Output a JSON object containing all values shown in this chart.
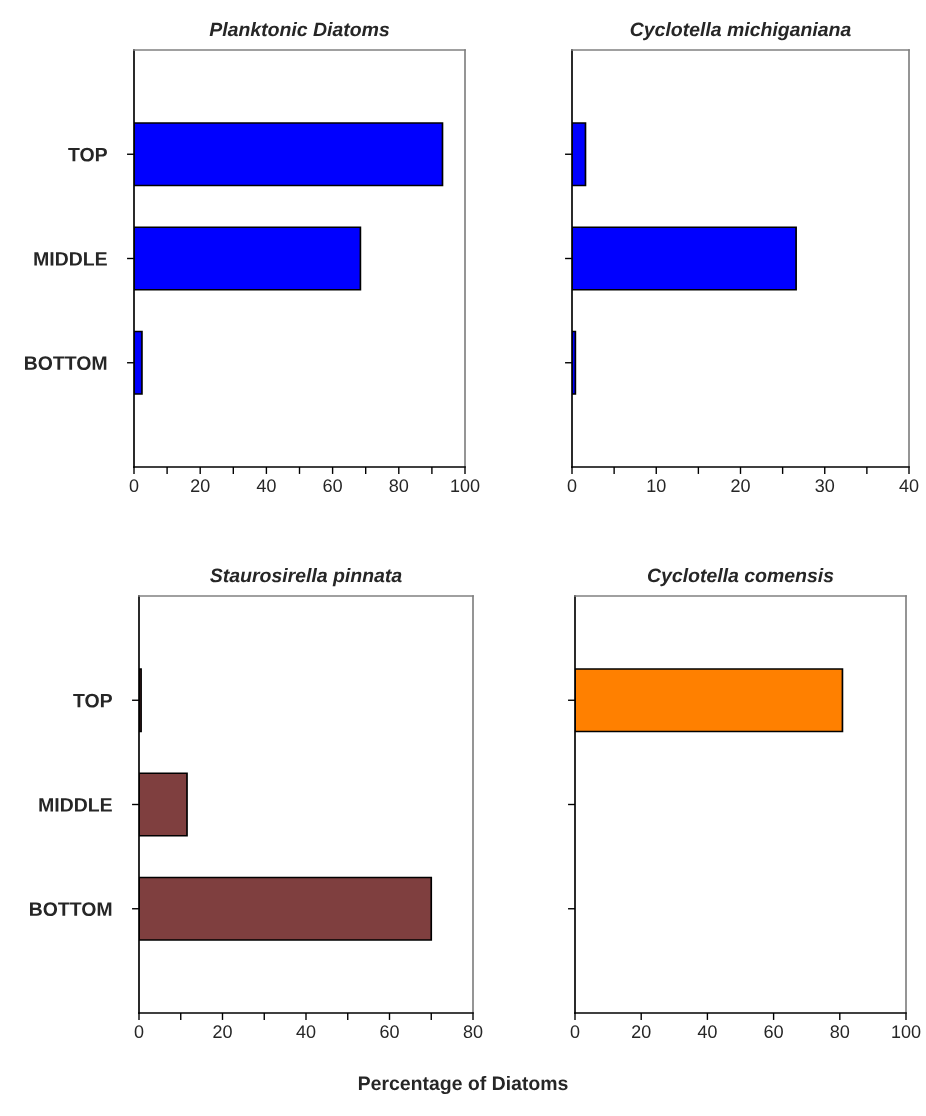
{
  "chart_data": [
    {
      "type": "bar",
      "orientation": "horizontal",
      "title": "Planktonic Diatoms",
      "categories": [
        "TOP",
        "MIDDLE",
        "BOTTOM"
      ],
      "values": [
        93.2,
        68.4,
        2.4
      ],
      "color": "#0000ff",
      "xlim": [
        0,
        100
      ],
      "xticks": [
        0,
        {
          "value": 10,
          "label": null
        },
        20,
        {
          "value": 30,
          "label": null
        },
        40,
        {
          "value": 50,
          "label": null
        },
        60,
        {
          "value": 70,
          "label": null
        },
        80,
        {
          "value": 90,
          "label": null
        },
        100
      ]
    },
    {
      "type": "bar",
      "orientation": "horizontal",
      "title": "Cyclotella michiganiana",
      "categories": [
        null,
        null,
        null
      ],
      "values": [
        1.6,
        26.6,
        0.4
      ],
      "color": "#0000ff",
      "xlim": [
        0,
        40
      ],
      "xticks": [
        0,
        {
          "value": 5,
          "label": null
        },
        10,
        {
          "value": 15,
          "label": null
        },
        20,
        {
          "value": 25,
          "label": null
        },
        30,
        {
          "value": 35,
          "label": null
        },
        40
      ],
      "tick_labels": "x"
    },
    {
      "type": "bar",
      "orientation": "horizontal",
      "title": "Staurosirella pinnata",
      "categories": [
        "TOP",
        "MIDDLE",
        "BOTTOM"
      ],
      "values": [
        0.5,
        11.5,
        70
      ],
      "color": "#7f3f3f",
      "xlim": [
        0,
        80
      ],
      "xticks": [
        0,
        {
          "value": 10,
          "label": null
        },
        20,
        {
          "value": 30,
          "label": null
        },
        40,
        {
          "value": 50,
          "label": null
        },
        60,
        {
          "value": 70,
          "label": null
        },
        80
      ]
    },
    {
      "type": "bar",
      "orientation": "horizontal",
      "title": "Cyclotella comensis",
      "categories": [
        null,
        null,
        null
      ],
      "values": [
        80.8,
        null,
        null
      ],
      "color": "#ff8000",
      "xlim": [
        0,
        100
      ],
      "xticks": [
        0,
        20,
        40,
        60,
        80,
        100
      ],
      "tick_labels": "x",
      "annotations": [
        "Percentage of Diatoms"
      ]
    }
  ]
}
